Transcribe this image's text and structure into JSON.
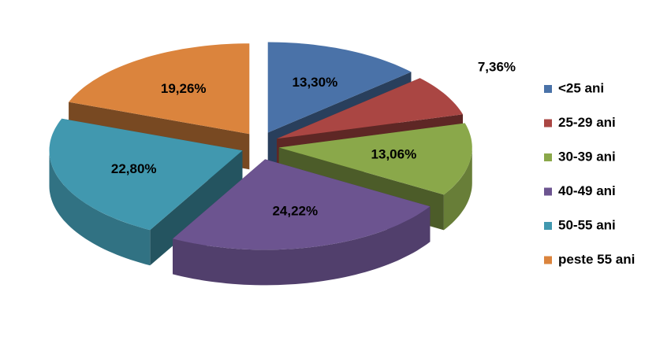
{
  "chart_data": {
    "type": "pie3d",
    "categories": [
      "<25 ani",
      "25-29 ani",
      "30-39 ani",
      "40-49 ani",
      "50-55 ani",
      "peste 55 ani"
    ],
    "values": [
      13.3,
      7.36,
      13.06,
      24.22,
      22.8,
      19.26
    ],
    "value_labels": [
      "13,30%",
      "7,36%",
      "13,06%",
      "24,22%",
      "22,80%",
      "19,26%"
    ],
    "colors": [
      "#4a72a8",
      "#aa4643",
      "#8aa84a",
      "#6c5490",
      "#4198af",
      "#db843d"
    ],
    "legend": "right"
  }
}
